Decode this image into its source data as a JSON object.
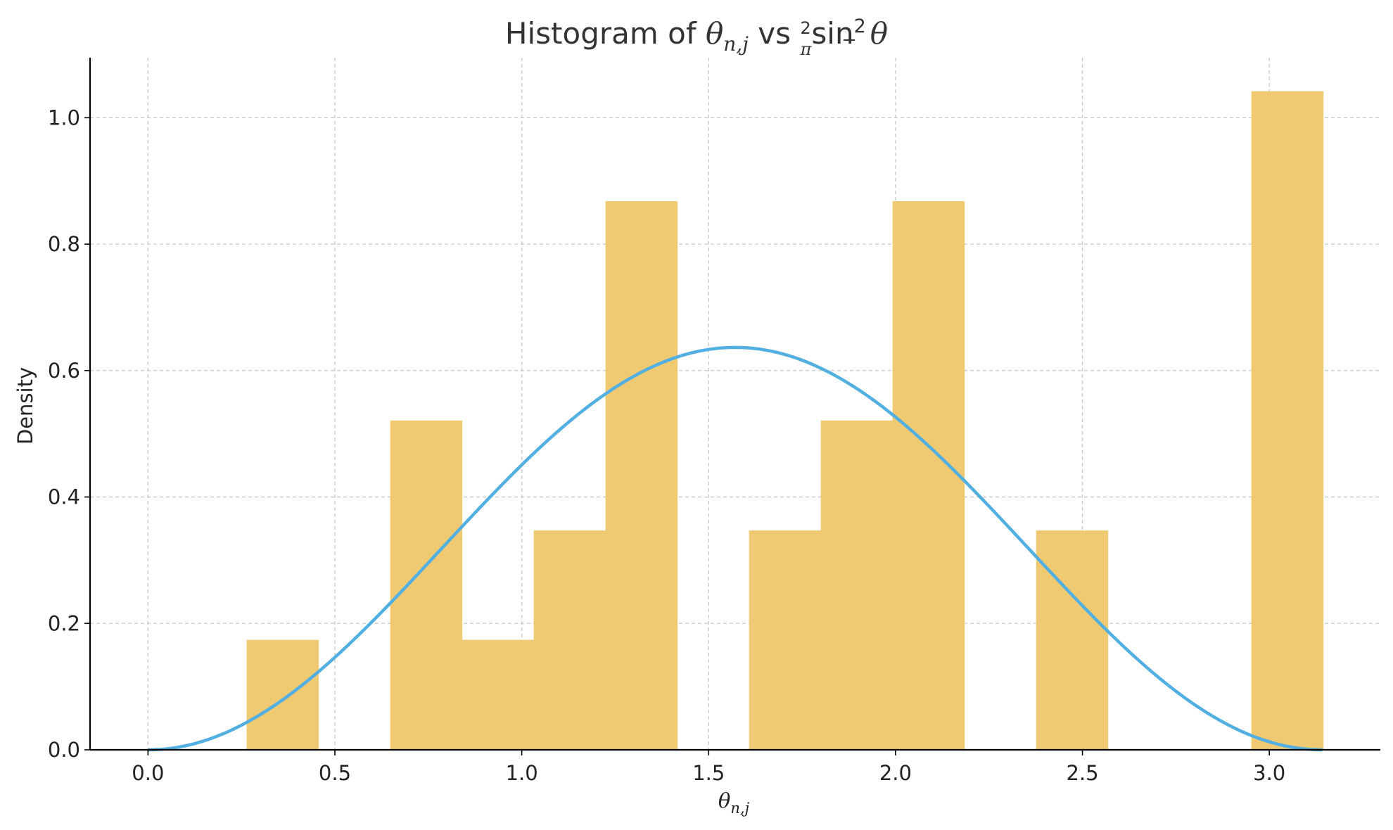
{
  "chart_data": {
    "type": "bar",
    "title": {
      "prefix": "Histogram of ",
      "theta": "θ",
      "subscript": "n,j",
      "middle": " vs ",
      "frac_num": "2",
      "frac_den": "π",
      "func": "sin",
      "exponent": "2",
      "theta2": "θ"
    },
    "xlabel": {
      "theta": "θ",
      "subscript": "n,j"
    },
    "ylabel": "Density",
    "xlim": [
      -0.155,
      3.297
    ],
    "ylim": [
      0,
      1.095
    ],
    "xticks": [
      0.0,
      0.5,
      1.0,
      1.5,
      2.0,
      2.5,
      3.0
    ],
    "xtick_labels": [
      "0.0",
      "0.5",
      "1.0",
      "1.5",
      "2.0",
      "2.5",
      "3.0"
    ],
    "yticks": [
      0.0,
      0.2,
      0.4,
      0.6,
      0.8,
      1.0
    ],
    "ytick_labels": [
      "0.0",
      "0.2",
      "0.4",
      "0.6",
      "0.8",
      "1.0"
    ],
    "grid": true,
    "bin_edges": [
      0.264,
      0.456,
      0.648,
      0.84,
      1.032,
      1.224,
      1.416,
      1.608,
      1.8,
      1.992,
      2.184,
      2.376,
      2.568,
      2.76,
      2.952,
      3.144
    ],
    "values": [
      0.174,
      0.0,
      0.521,
      0.174,
      0.347,
      0.868,
      0.0,
      0.347,
      0.521,
      0.868,
      0.0,
      0.347,
      0.0,
      0.0,
      1.042
    ],
    "curve": {
      "formula": "2/pi * sin(theta)^2",
      "x_range": [
        0,
        3.1416
      ]
    },
    "colors": {
      "bars": "#f0ca73",
      "curve": "#52afe1",
      "grid": "#c8c8c8",
      "axis": "#000000"
    }
  }
}
